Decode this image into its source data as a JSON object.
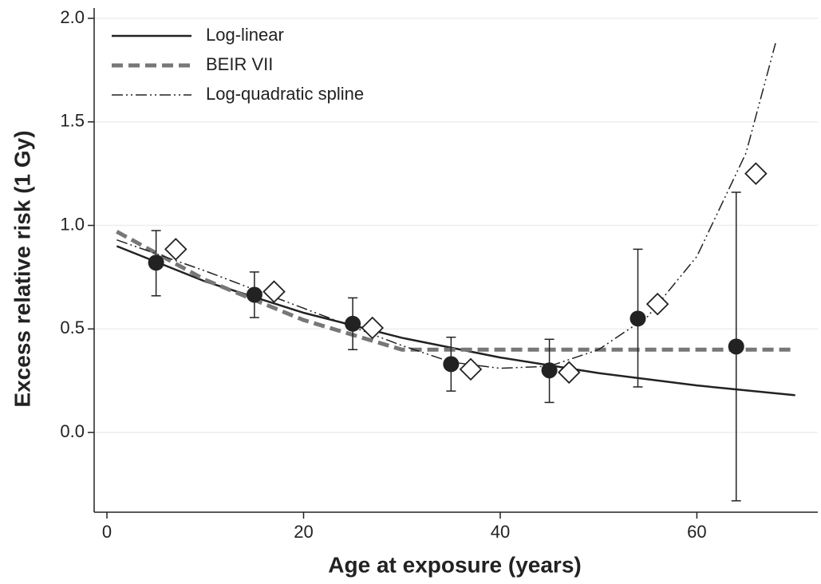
{
  "chart_data": {
    "type": "line",
    "xlabel": "Age at exposure (years)",
    "ylabel": "Excess relative risk (1 Gy)",
    "xlim": [
      -1.3,
      72.3
    ],
    "xticks": [
      0,
      20,
      40,
      60
    ],
    "ylim": [
      -0.385,
      2.05
    ],
    "yticks": [
      {
        "value": 0,
        "label": "0.0"
      },
      0.5,
      {
        "value": 1,
        "label": "1.0"
      },
      1.5,
      {
        "value": 2,
        "label": "2.0"
      }
    ],
    "grid": true,
    "legend": "upper-left",
    "series": [
      {
        "name": "Log-linear",
        "color": "#222222",
        "dash": "solid",
        "x": [
          1,
          10,
          20,
          30,
          40,
          50,
          60,
          70
        ],
        "values": [
          0.9,
          0.729,
          0.578,
          0.457,
          0.362,
          0.287,
          0.227,
          0.18
        ]
      },
      {
        "name": "BEIR VII",
        "color": "#777777",
        "dash": "dashed",
        "x": [
          1,
          10,
          20,
          30,
          70
        ],
        "values": [
          0.97,
          0.737,
          0.543,
          0.4,
          0.4
        ]
      },
      {
        "name": "Log-quadratic spline",
        "color": "#222222",
        "dash": "dash-dot-dot",
        "x": [
          1,
          10,
          20,
          30,
          35,
          40,
          45,
          50,
          55,
          60,
          65,
          68
        ],
        "values": [
          0.93,
          0.78,
          0.6,
          0.42,
          0.34,
          0.31,
          0.32,
          0.4,
          0.56,
          0.85,
          1.35,
          1.88
        ]
      }
    ],
    "points": [
      {
        "marker": "filled-circle",
        "color": "#222222",
        "x": [
          5,
          15,
          25,
          35,
          45,
          54,
          64
        ],
        "values": [
          0.82,
          0.665,
          0.525,
          0.33,
          0.3,
          0.55,
          0.415
        ],
        "err_low": [
          0.66,
          0.555,
          0.4,
          0.2,
          0.145,
          0.22,
          -0.33
        ],
        "err_high": [
          0.975,
          0.775,
          0.65,
          0.46,
          0.45,
          0.885,
          1.16
        ]
      },
      {
        "marker": "hollow-diamond",
        "color": "#222222",
        "x": [
          7,
          17,
          27,
          37,
          47,
          56,
          66
        ],
        "values": [
          0.885,
          0.68,
          0.505,
          0.305,
          0.29,
          0.62,
          1.25
        ]
      }
    ]
  }
}
